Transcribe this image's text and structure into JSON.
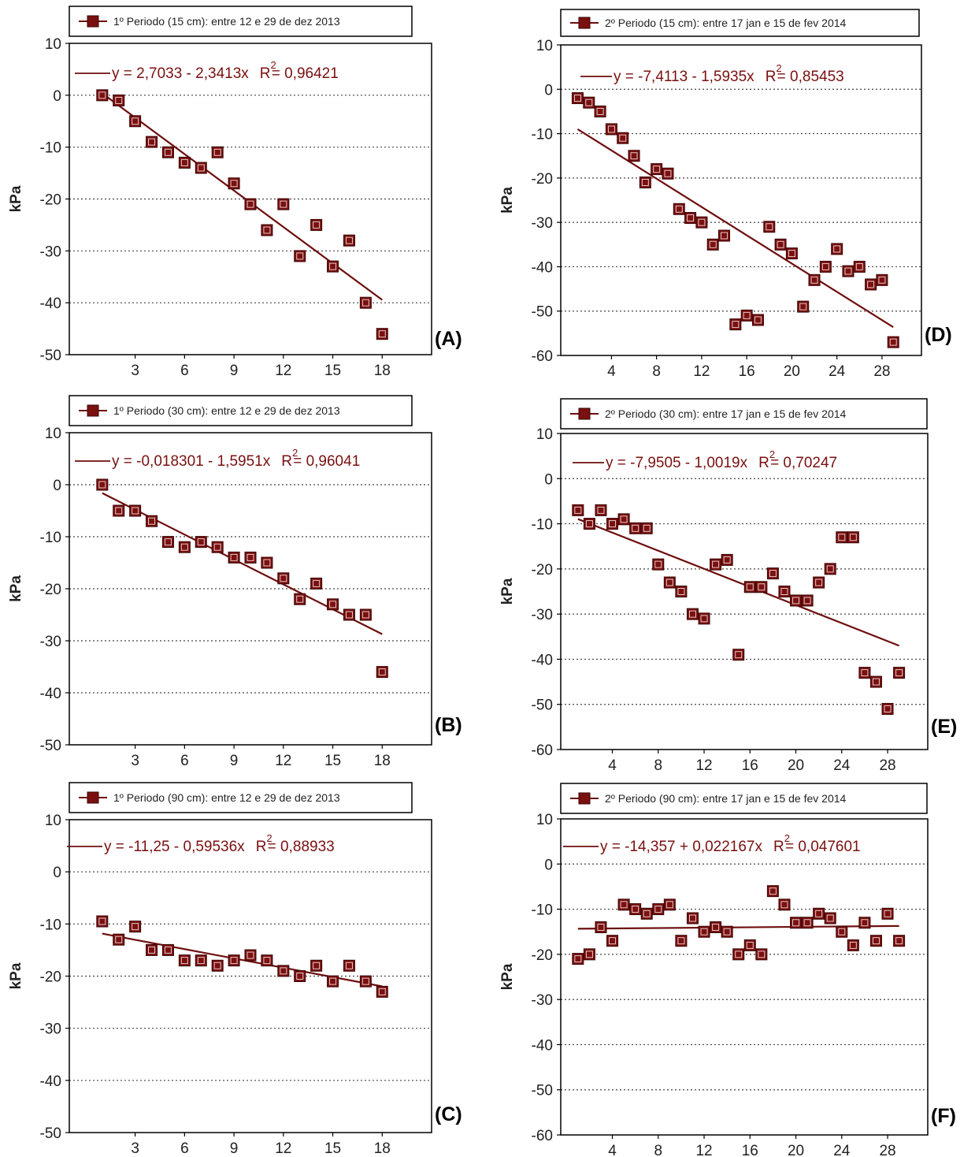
{
  "colors": {
    "marker": "#7a1010",
    "marker_edge": "#3a0505",
    "line": "#6e0e0e",
    "frame": "#000000",
    "grid": "#444444"
  },
  "chart_data": [
    {
      "id": "A",
      "panel_label": "(A)",
      "type": "scatter",
      "legend": "1º Periodo (15 cm): entre 12 e 29 de dez 2013",
      "equation": "y = 2,7033 - 2,3413x",
      "r2_label": "R",
      "r2_exp": "2",
      "r2_value": "= 0,96421",
      "ylabel": "kPa",
      "xlim": [
        -1,
        21
      ],
      "ylim": [
        -50,
        10
      ],
      "xticks": [
        3,
        6,
        9,
        12,
        15,
        18
      ],
      "yticks": [
        10,
        0,
        -10,
        -20,
        -30,
        -40,
        -50
      ],
      "x": [
        1,
        2,
        3,
        4,
        5,
        6,
        7,
        8,
        9,
        10,
        11,
        12,
        13,
        14,
        15,
        16,
        17,
        18
      ],
      "y": [
        0,
        -1,
        -5,
        -9,
        -11,
        -13,
        -14,
        -11,
        -17,
        -21,
        -26,
        -21,
        -31,
        -25,
        -33,
        -28,
        -40,
        -46
      ],
      "fit": {
        "intercept": 2.7033,
        "slope": -2.3413,
        "x_range": [
          1,
          18
        ]
      }
    },
    {
      "id": "D",
      "panel_label": "(D)",
      "type": "scatter",
      "legend": "2º Periodo (15 cm): entre 17 jan e 15 de fev 2014",
      "equation": "y = -7,4113 - 1,5935x",
      "r2_label": "R",
      "r2_exp": "2",
      "r2_value": "= 0,85453",
      "ylabel": "kPa",
      "xlim": [
        -0.5,
        31.5
      ],
      "ylim": [
        -60,
        10
      ],
      "xticks": [
        4,
        8,
        12,
        16,
        20,
        24,
        28
      ],
      "yticks": [
        10,
        0,
        -10,
        -20,
        -30,
        -40,
        -50,
        -60
      ],
      "x": [
        1,
        2,
        3,
        4,
        5,
        6,
        7,
        8,
        9,
        10,
        11,
        12,
        13,
        14,
        15,
        16,
        17,
        18,
        19,
        20,
        21,
        22,
        23,
        24,
        25,
        26,
        27,
        28,
        29
      ],
      "y": [
        -2,
        -3,
        -5,
        -9,
        -11,
        -15,
        -21,
        -18,
        -19,
        -27,
        -29,
        -30,
        -35,
        -33,
        -53,
        -51,
        -52,
        -31,
        -35,
        -37,
        -49,
        -43,
        -40,
        -36,
        -41,
        -40,
        -44,
        -43,
        -57
      ],
      "fit": {
        "intercept": -7.4113,
        "slope": -1.5935,
        "x_range": [
          1,
          29
        ]
      }
    },
    {
      "id": "B",
      "panel_label": "(B)",
      "type": "scatter",
      "legend": "1º Periodo (30 cm): entre 12 e 29 de dez 2013",
      "equation": "y = -0,018301 - 1,5951x",
      "r2_label": "R",
      "r2_exp": "2",
      "r2_value": "= 0,96041",
      "ylabel": "kPa",
      "xlim": [
        -1,
        21
      ],
      "ylim": [
        -50,
        10
      ],
      "xticks": [
        3,
        6,
        9,
        12,
        15,
        18
      ],
      "yticks": [
        10,
        0,
        -10,
        -20,
        -30,
        -40,
        -50
      ],
      "x": [
        1,
        2,
        3,
        4,
        5,
        6,
        7,
        8,
        9,
        10,
        11,
        12,
        13,
        14,
        15,
        16,
        17,
        18
      ],
      "y": [
        0,
        -5,
        -5,
        -7,
        -11,
        -12,
        -11,
        -12,
        -14,
        -14,
        -15,
        -18,
        -22,
        -19,
        -23,
        -25,
        -25,
        -36
      ],
      "fit": {
        "intercept": -0.018301,
        "slope": -1.5951,
        "x_range": [
          1,
          18
        ]
      }
    },
    {
      "id": "E",
      "panel_label": "(E)",
      "type": "scatter",
      "legend": "2º Periodo (30 cm): entre 17 jan e 15 de fev 2014",
      "equation": "y = -7,9505 - 1,0019x",
      "r2_label": "R",
      "r2_exp": "2",
      "r2_value": "= 0,70247",
      "ylabel": "kPa",
      "xlim": [
        -0.5,
        31.5
      ],
      "ylim": [
        -60,
        10
      ],
      "xticks": [
        4,
        8,
        12,
        16,
        20,
        24,
        28
      ],
      "yticks": [
        10,
        0,
        -10,
        -20,
        -30,
        -40,
        -50,
        -60
      ],
      "x": [
        1,
        2,
        3,
        4,
        5,
        6,
        7,
        8,
        9,
        10,
        11,
        12,
        13,
        14,
        15,
        16,
        17,
        18,
        19,
        20,
        21,
        22,
        23,
        24,
        25,
        26,
        27,
        28,
        29
      ],
      "y": [
        -7,
        -10,
        -7,
        -10,
        -9,
        -11,
        -11,
        -19,
        -23,
        -25,
        -30,
        -31,
        -19,
        -18,
        -39,
        -24,
        -24,
        -21,
        -25,
        -27,
        -27,
        -23,
        -20,
        -13,
        -13,
        -43,
        -45,
        -51,
        -43
      ],
      "fit": {
        "intercept": -7.9505,
        "slope": -1.0019,
        "x_range": [
          1,
          29
        ]
      }
    },
    {
      "id": "C",
      "panel_label": "(C)",
      "type": "scatter",
      "legend": "1º Periodo (90 cm): entre 12 e 29 de dez 2013",
      "equation": "y = -11,25 - 0,59536x",
      "r2_label": "R",
      "r2_exp": "2",
      "r2_value": "= 0,88933",
      "ylabel": "kPa",
      "xlim": [
        -1,
        21
      ],
      "ylim": [
        -50,
        10
      ],
      "xticks": [
        3,
        6,
        9,
        12,
        15,
        18
      ],
      "yticks": [
        10,
        0,
        -10,
        -20,
        -30,
        -40,
        -50
      ],
      "x": [
        1,
        2,
        3,
        4,
        5,
        6,
        7,
        8,
        9,
        10,
        11,
        12,
        13,
        14,
        15,
        16,
        17,
        18
      ],
      "y": [
        -9.5,
        -13,
        -10.5,
        -15,
        -15,
        -17,
        -17,
        -18,
        -17,
        -16,
        -17,
        -19,
        -20,
        -18,
        -21,
        -18,
        -21,
        -23
      ],
      "fit": {
        "intercept": -11.25,
        "slope": -0.59536,
        "x_range": [
          1,
          18
        ]
      }
    },
    {
      "id": "F",
      "panel_label": "(F)",
      "type": "scatter",
      "legend": "2º Periodo (90 cm): entre 17 jan e 15 de fev 2014",
      "equation": "y = -14,357 + 0,022167x",
      "r2_label": "R",
      "r2_exp": "2",
      "r2_value": "= 0,047601",
      "ylabel": "kPa",
      "xlim": [
        -0.5,
        31.5
      ],
      "ylim": [
        -60,
        10
      ],
      "xticks": [
        4,
        8,
        12,
        16,
        20,
        24,
        28
      ],
      "yticks": [
        10,
        0,
        -10,
        -20,
        -30,
        -40,
        -50,
        -60
      ],
      "x": [
        1,
        2,
        3,
        4,
        5,
        6,
        7,
        8,
        9,
        10,
        11,
        12,
        13,
        14,
        15,
        16,
        17,
        18,
        19,
        20,
        21,
        22,
        23,
        24,
        25,
        26,
        27,
        28,
        29
      ],
      "y": [
        -21,
        -20,
        -14,
        -17,
        -9,
        -10,
        -11,
        -10,
        -9,
        -17,
        -12,
        -15,
        -14,
        -15,
        -20,
        -18,
        -20,
        -6,
        -9,
        -13,
        -13,
        -11,
        -12,
        -15,
        -18,
        -13,
        -17,
        -11,
        -17
      ],
      "fit": {
        "intercept": -14.357,
        "slope": 0.022167,
        "x_range": [
          1,
          29
        ]
      }
    }
  ]
}
